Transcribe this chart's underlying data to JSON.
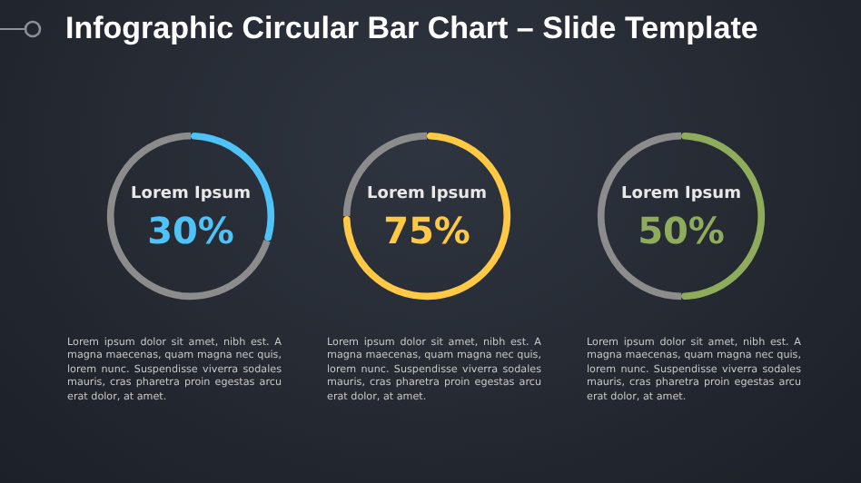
{
  "chart_data": [
    {
      "type": "donut",
      "title": "Infographic Circular Bar Chart – Slide Template",
      "categories": [
        "Lorem Ipsum",
        null
      ],
      "values": [
        30,
        70
      ],
      "colors": [
        "#4fc3f7",
        "#8c8c8c"
      ],
      "value_labels": [
        "30%",
        null
      ],
      "annotations": [
        "Lorem ipsum dolor sit amet, nibh est. A magna maecenas, quam magna nec quis, lorem nunc. Suspendisse viverra sodales mauris, cras pharetra proin egestas arcu erat dolor, at amet."
      ]
    },
    {
      "type": "donut",
      "categories": [
        "Lorem Ipsum",
        null
      ],
      "values": [
        75,
        25
      ],
      "colors": [
        "#ffc845",
        "#8c8c8c"
      ],
      "value_labels": [
        "75%",
        null
      ],
      "annotations": [
        "Lorem ipsum dolor sit amet, nibh est. A magna maecenas, quam magna nec quis, lorem nunc. Suspendisse viverra sodales mauris, cras pharetra proin egestas arcu erat dolor, at amet."
      ]
    },
    {
      "type": "donut",
      "categories": [
        "Lorem Ipsum",
        null
      ],
      "values": [
        50,
        50
      ],
      "colors": [
        "#8fac5c",
        "#8c8c8c"
      ],
      "value_labels": [
        "50%",
        null
      ],
      "annotations": [
        "Lorem ipsum dolor sit amet, nibh est. A magna maecenas, quam magna nec quis, lorem nunc. Suspendisse viverra sodales mauris, cras pharetra proin egestas arcu erat dolor, at amet."
      ]
    }
  ]
}
